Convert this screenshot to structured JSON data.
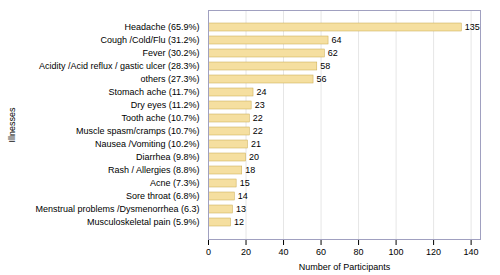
{
  "chart_data": {
    "type": "bar",
    "orientation": "horizontal",
    "categories": [
      "Musculoskeletal pain (5.9%)",
      "Menstrual problems /Dysmenorrhea (6.3)",
      "Sore throat (6.8%)",
      "Acne (7.3%)",
      "Rash / Allergies (8.8%)",
      "Diarrhea (9.8%)",
      "Nausea /Vomiting (10.2%)",
      "Muscle spasm/cramps (10.7%)",
      "Tooth ache (10.7%)",
      "Dry eyes (11.2%)",
      "Stomach ache (11.7%)",
      "others (27.3%)",
      "Acidity /Acid reflux / gastic ulcer (28.3%)",
      "Fever (30.2%)",
      "Cough /Cold/Flu (31.2%)",
      "Headache (65.9%)"
    ],
    "values": [
      12,
      13,
      14,
      15,
      18,
      20,
      21,
      22,
      22,
      23,
      24,
      56,
      58,
      62,
      64,
      135
    ],
    "color": "#F5DFA0",
    "xlabel": "Number of Participants",
    "ylabel": "Illnesses",
    "xlim": [
      0,
      145
    ],
    "xticks": [
      0,
      20,
      40,
      60,
      80,
      100,
      120,
      140
    ],
    "grid": true,
    "data_labels": true
  }
}
